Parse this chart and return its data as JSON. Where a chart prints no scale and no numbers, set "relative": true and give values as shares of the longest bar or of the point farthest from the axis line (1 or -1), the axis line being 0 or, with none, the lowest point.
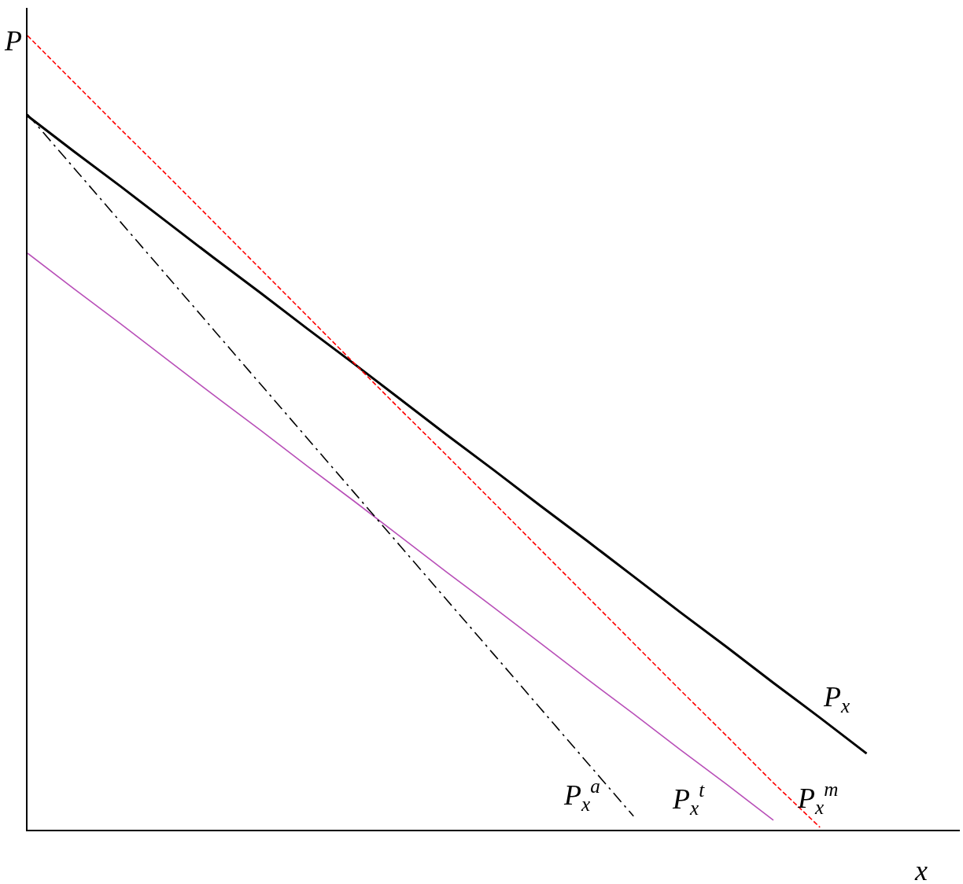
{
  "chart_data": {
    "type": "line",
    "relative": true,
    "xlabel": "x",
    "ylabel": "P",
    "legend": false,
    "marker": "none",
    "categories": [
      null,
      null,
      null,
      null,
      null,
      null,
      null,
      null,
      null,
      null,
      null,
      null,
      null,
      null,
      null,
      null,
      null,
      null,
      null
    ],
    "series": [
      {
        "name": "P$_{x}$",
        "color": "#000000",
        "line_style": "solid",
        "values": [
          0.899,
          0.854,
          0.81,
          0.765,
          0.72,
          0.676,
          0.631,
          0.587,
          0.542,
          0.497,
          0.453,
          0.408,
          0.364,
          0.319,
          0.274,
          0.23,
          0.185,
          0.141,
          0.096
        ]
      },
      {
        "name": "P$_{x}$$^{m}$",
        "color": "#ff0000",
        "line_style": "dashed",
        "values": [
          1.0,
          0.941,
          0.882,
          0.824,
          0.765,
          0.706,
          0.647,
          0.588,
          0.529,
          0.471,
          0.412,
          0.353,
          0.294,
          0.235,
          0.176,
          0.118,
          0.059,
          0.003,
          null
        ]
      },
      {
        "name": "P$_{x}$$^{t}$",
        "color": "#b84fb8",
        "line_style": "solid",
        "values": [
          0.726,
          0.681,
          0.637,
          0.592,
          0.547,
          0.503,
          0.458,
          0.414,
          0.369,
          0.324,
          0.28,
          0.235,
          0.19,
          0.146,
          0.101,
          0.057,
          0.012,
          null,
          null
        ]
      },
      {
        "name": "P$_{x}$$^{a}$",
        "color": "#000000",
        "line_style": "dashdot",
        "values": [
          0.901,
          0.833,
          0.765,
          0.697,
          0.629,
          0.561,
          0.493,
          0.425,
          0.357,
          0.289,
          0.221,
          0.153,
          0.085,
          0.017,
          null,
          null,
          null,
          null,
          null
        ]
      }
    ]
  }
}
